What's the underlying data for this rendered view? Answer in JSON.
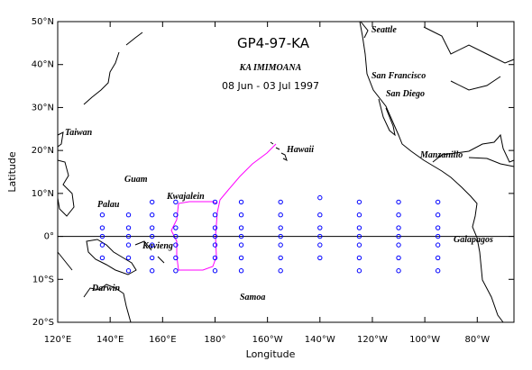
{
  "map": {
    "title": "GP4-97-KA",
    "ship": "KA IMIMOANA",
    "dates": "08 Jun - 03 Jul 1997",
    "x_axis": {
      "label": "Longitude",
      "lim": [
        120,
        294
      ],
      "ticks": [
        {
          "value": 120,
          "label": "120°E"
        },
        {
          "value": 140,
          "label": "140°E"
        },
        {
          "value": 160,
          "label": "160°E"
        },
        {
          "value": 180,
          "label": "180°"
        },
        {
          "value": 200,
          "label": "160°W"
        },
        {
          "value": 220,
          "label": "140°W"
        },
        {
          "value": 240,
          "label": "120°W"
        },
        {
          "value": 260,
          "label": "100°W"
        },
        {
          "value": 280,
          "label": "80°W"
        }
      ]
    },
    "y_axis": {
      "label": "Latitude",
      "lim": [
        -20,
        50
      ],
      "ticks": [
        {
          "value": -20,
          "label": "20°S"
        },
        {
          "value": -10,
          "label": "10°S"
        },
        {
          "value": 0,
          "label": "0°"
        },
        {
          "value": 10,
          "label": "10°N"
        },
        {
          "value": 20,
          "label": "20°N"
        },
        {
          "value": 30,
          "label": "30°N"
        },
        {
          "value": 40,
          "label": "40°N"
        },
        {
          "value": 50,
          "label": "50°N"
        }
      ]
    },
    "places": [
      "Seattle",
      "San Francisco",
      "San Diego",
      "Hawaii",
      "Manzanillo",
      "Taiwan",
      "Guam",
      "Palau",
      "Kwajalein",
      "Kavieng",
      "Galapagos",
      "Darwin",
      "Samoa"
    ],
    "buoys": {
      "color": "#0000ff",
      "lon": [
        137,
        137,
        137,
        137,
        137,
        147,
        147,
        147,
        147,
        147,
        147,
        156,
        156,
        156,
        156,
        156,
        156,
        156,
        165,
        165,
        165,
        165,
        165,
        165,
        165,
        180,
        180,
        180,
        180,
        180,
        180,
        180,
        190,
        190,
        190,
        190,
        190,
        190,
        190,
        205,
        205,
        205,
        205,
        205,
        205,
        205,
        220,
        220,
        220,
        220,
        220,
        220,
        235,
        235,
        235,
        235,
        235,
        235,
        235,
        250,
        250,
        250,
        250,
        250,
        250,
        250,
        265,
        265,
        265,
        265,
        265,
        265,
        265
      ],
      "lat": [
        5,
        2,
        0,
        -2,
        -5,
        5,
        2,
        0,
        -2,
        -5,
        -8,
        8,
        5,
        2,
        0,
        -2,
        -5,
        -8,
        8,
        5,
        2,
        0,
        -2,
        -5,
        -8,
        8,
        5,
        2,
        0,
        -2,
        -5,
        -8,
        8,
        5,
        2,
        0,
        -2,
        -5,
        -8,
        8,
        5,
        2,
        0,
        -2,
        -5,
        -8,
        9,
        5,
        2,
        0,
        -2,
        -5,
        8,
        5,
        2,
        0,
        -2,
        -5,
        -8,
        8,
        5,
        2,
        0,
        -2,
        -5,
        -8,
        8,
        5,
        2,
        0,
        -2,
        -5,
        -8
      ]
    }
  }
}
